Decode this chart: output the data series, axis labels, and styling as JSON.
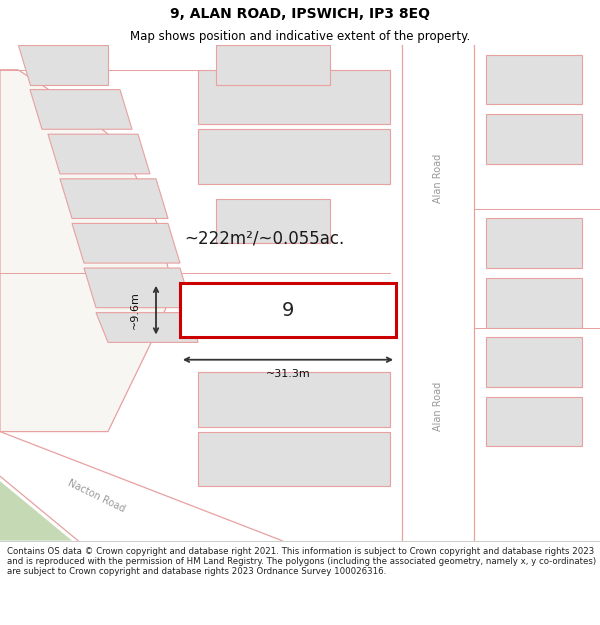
{
  "title": "9, ALAN ROAD, IPSWICH, IP3 8EQ",
  "subtitle": "Map shows position and indicative extent of the property.",
  "footer": "Contains OS data © Crown copyright and database right 2021. This information is subject to Crown copyright and database rights 2023 and is reproduced with the permission of HM Land Registry. The polygons (including the associated geometry, namely x, y co-ordinates) are subject to Crown copyright and database rights 2023 Ordnance Survey 100026316.",
  "map_bg": "#f7f6f3",
  "highlight_border": "#cc0000",
  "label_area": "~222m²/~0.055ac.",
  "label_width": "~31.3m",
  "label_height": "~9.6m",
  "label_number": "9",
  "road_label_alan1": "Alan Road",
  "road_label_alan2": "Alan Road",
  "road_label_nacton": "Nacton Road",
  "title_fontsize": 10,
  "subtitle_fontsize": 8.5,
  "footer_fontsize": 6.2,
  "plot_gray": "#e0e0e0",
  "plot_pink": "#e8a0a0",
  "road_white": "#ffffff",
  "dim_color": "#333333",
  "green_color": "#c5d9b5"
}
